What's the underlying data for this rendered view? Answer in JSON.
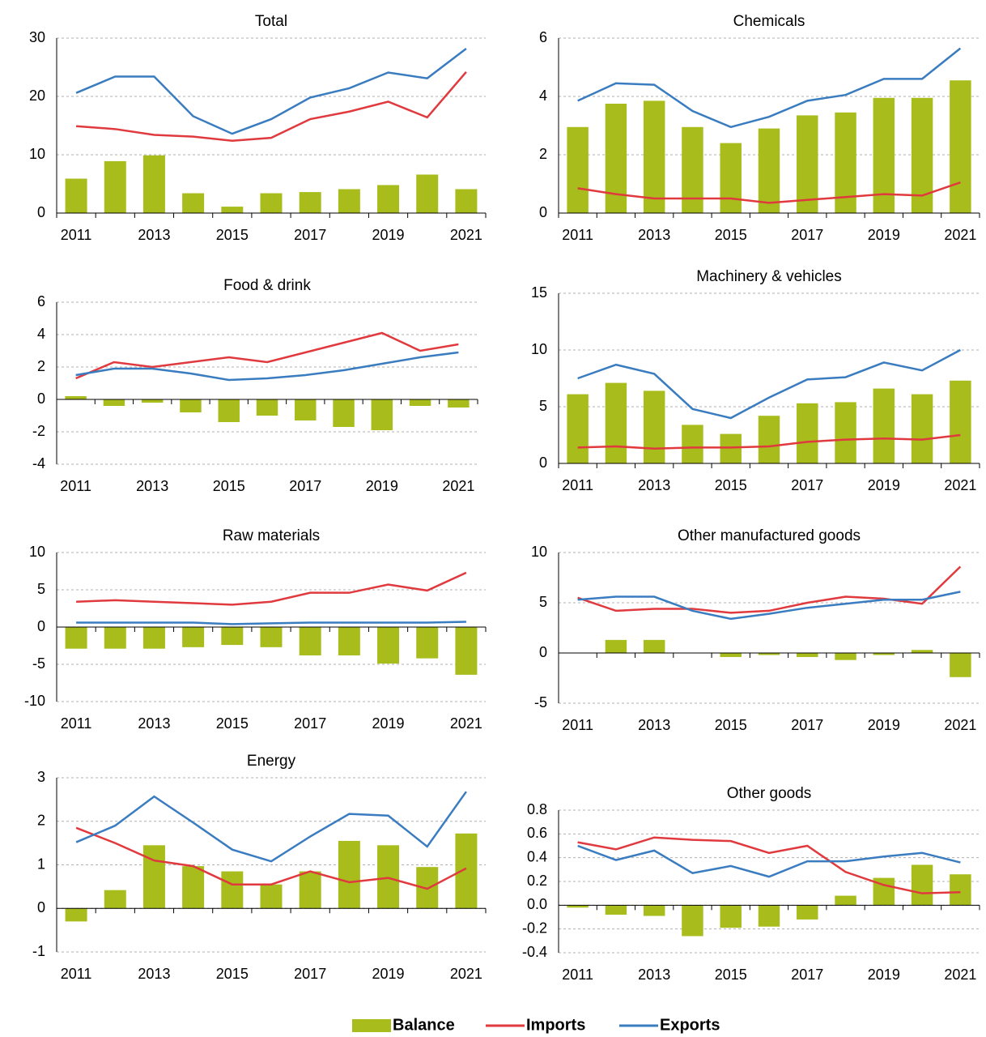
{
  "legend": [
    {
      "name": "Balance",
      "color": "#a8bd1c",
      "type": "bar"
    },
    {
      "name": "Imports",
      "color": "#e0393e",
      "type": "line"
    },
    {
      "name": "Exports",
      "color": "#3a7cc0",
      "type": "line"
    }
  ],
  "chart_data": [
    {
      "type": "bar-line",
      "title": "Total",
      "grid": true,
      "categories": [
        "2011",
        null,
        "2013",
        null,
        "2015",
        null,
        "2017",
        null,
        "2019",
        null,
        "2021"
      ],
      "ylim": [
        0,
        30
      ],
      "yticks": [
        0,
        10,
        20,
        30
      ],
      "series": [
        {
          "values": [
            5.9,
            8.9,
            9.9,
            3.4,
            1.1,
            3.4,
            3.6,
            4.1,
            4.8,
            6.6,
            4.1
          ]
        },
        {
          "values": [
            14.9,
            14.4,
            13.4,
            13.1,
            12.4,
            12.9,
            16.1,
            17.4,
            19.1,
            16.4,
            24.2
          ]
        },
        {
          "values": [
            20.6,
            23.4,
            23.4,
            16.6,
            13.6,
            16.1,
            19.8,
            21.4,
            24.1,
            23.1,
            28.2
          ]
        }
      ]
    },
    {
      "type": "bar-line",
      "title": "Chemicals",
      "grid": true,
      "categories": [
        "2011",
        null,
        "2013",
        null,
        "2015",
        null,
        "2017",
        null,
        "2019",
        null,
        "2021"
      ],
      "ylim": [
        0,
        6
      ],
      "yticks": [
        0,
        2,
        4,
        6
      ],
      "series": [
        {
          "values": [
            2.95,
            3.75,
            3.85,
            2.95,
            2.4,
            2.9,
            3.35,
            3.45,
            3.95,
            3.95,
            4.55
          ]
        },
        {
          "values": [
            0.85,
            0.65,
            0.5,
            0.5,
            0.5,
            0.35,
            0.45,
            0.55,
            0.65,
            0.6,
            1.05
          ]
        },
        {
          "values": [
            3.85,
            4.45,
            4.4,
            3.5,
            2.95,
            3.3,
            3.85,
            4.05,
            4.6,
            4.6,
            5.65
          ]
        }
      ]
    },
    {
      "type": "bar-line",
      "title": "Food & drink",
      "grid": true,
      "categories": [
        "2011",
        null,
        "2013",
        null,
        "2015",
        null,
        "2017",
        null,
        "2019",
        null,
        "2021"
      ],
      "ylim": [
        -4,
        6
      ],
      "yticks": [
        -4,
        -2,
        0,
        2,
        4,
        6
      ],
      "series": [
        {
          "values": [
            0.2,
            -0.4,
            -0.2,
            -0.8,
            -1.4,
            -1.0,
            -1.3,
            -1.7,
            -1.9,
            -0.4,
            -0.5
          ]
        },
        {
          "values": [
            1.3,
            2.3,
            2.0,
            2.3,
            2.6,
            2.3,
            2.9,
            3.5,
            4.1,
            3.0,
            3.4
          ]
        },
        {
          "values": [
            1.5,
            1.9,
            1.9,
            1.6,
            1.2,
            1.3,
            1.5,
            1.8,
            2.2,
            2.6,
            2.9
          ]
        }
      ]
    },
    {
      "type": "bar-line",
      "title": "Machinery & vehicles",
      "grid": true,
      "categories": [
        "2011",
        null,
        "2013",
        null,
        "2015",
        null,
        "2017",
        null,
        "2019",
        null,
        "2021"
      ],
      "ylim": [
        0,
        15
      ],
      "yticks": [
        0,
        5,
        10,
        15
      ],
      "series": [
        {
          "values": [
            6.1,
            7.1,
            6.4,
            3.4,
            2.6,
            4.2,
            5.3,
            5.4,
            6.6,
            6.1,
            7.3
          ]
        },
        {
          "values": [
            1.4,
            1.5,
            1.3,
            1.4,
            1.4,
            1.5,
            1.9,
            2.1,
            2.2,
            2.1,
            2.5
          ]
        },
        {
          "values": [
            7.5,
            8.7,
            7.9,
            4.8,
            4.0,
            5.8,
            7.4,
            7.6,
            8.9,
            8.2,
            10.0
          ]
        }
      ]
    },
    {
      "type": "bar-line",
      "title": "Raw materials",
      "grid": true,
      "categories": [
        "2011",
        null,
        "2013",
        null,
        "2015",
        null,
        "2017",
        null,
        "2019",
        null,
        "2021"
      ],
      "ylim": [
        -10,
        10
      ],
      "yticks": [
        -10,
        -5,
        0,
        5,
        10
      ],
      "series": [
        {
          "values": [
            -2.9,
            -2.9,
            -2.9,
            -2.7,
            -2.4,
            -2.7,
            -3.8,
            -3.8,
            -4.9,
            -4.2,
            -6.4
          ]
        },
        {
          "values": [
            3.4,
            3.6,
            3.4,
            3.2,
            3.0,
            3.4,
            4.6,
            4.6,
            5.7,
            4.9,
            7.3
          ]
        },
        {
          "values": [
            0.6,
            0.6,
            0.6,
            0.6,
            0.4,
            0.5,
            0.6,
            0.6,
            0.6,
            0.6,
            0.7
          ]
        }
      ]
    },
    {
      "type": "bar-line",
      "title": "Other manufactured  goods",
      "grid": true,
      "categories": [
        "2011",
        null,
        "2013",
        null,
        "2015",
        null,
        "2017",
        null,
        "2019",
        null,
        "2021"
      ],
      "ylim": [
        -5,
        10
      ],
      "yticks": [
        -5,
        0,
        5,
        10
      ],
      "series": [
        {
          "values": [
            0,
            1.3,
            1.3,
            0,
            -0.4,
            -0.2,
            -0.4,
            -0.7,
            -0.2,
            0.3,
            -2.4
          ]
        },
        {
          "values": [
            5.5,
            4.2,
            4.4,
            4.4,
            4.0,
            4.2,
            5.0,
            5.6,
            5.4,
            4.9,
            8.6
          ]
        },
        {
          "values": [
            5.3,
            5.6,
            5.6,
            4.2,
            3.4,
            3.9,
            4.5,
            4.9,
            5.3,
            5.3,
            6.1
          ]
        }
      ]
    },
    {
      "type": "bar-line",
      "title": "Energy",
      "grid": true,
      "categories": [
        "2011",
        null,
        "2013",
        null,
        "2015",
        null,
        "2017",
        null,
        "2019",
        null,
        "2021"
      ],
      "ylim": [
        -1,
        3
      ],
      "yticks": [
        -1,
        0,
        1,
        2,
        3
      ],
      "series": [
        {
          "values": [
            -0.3,
            0.42,
            1.45,
            0.97,
            0.85,
            0.55,
            0.85,
            1.55,
            1.45,
            0.95,
            1.72
          ]
        },
        {
          "values": [
            1.85,
            1.5,
            1.1,
            0.97,
            0.55,
            0.55,
            0.85,
            0.6,
            0.7,
            0.45,
            0.92
          ]
        },
        {
          "values": [
            1.52,
            1.9,
            2.57,
            1.97,
            1.35,
            1.08,
            1.65,
            2.17,
            2.13,
            1.42,
            2.68
          ]
        }
      ]
    },
    {
      "type": "bar-line",
      "title": "Other goods",
      "grid": true,
      "categories": [
        "2011",
        null,
        "2013",
        null,
        "2015",
        null,
        "2017",
        null,
        "2019",
        null,
        "2021"
      ],
      "ylim": [
        -0.4,
        0.8
      ],
      "yticks": [
        -0.4,
        -0.2,
        {
          "value": 0,
          "label": "0.0"
        },
        0.2,
        0.4,
        0.6,
        0.8
      ],
      "series": [
        {
          "values": [
            -0.02,
            -0.08,
            -0.09,
            -0.26,
            -0.19,
            -0.18,
            -0.12,
            0.08,
            0.23,
            0.34,
            0.26
          ]
        },
        {
          "values": [
            0.53,
            0.47,
            0.57,
            0.55,
            0.54,
            0.44,
            0.5,
            0.28,
            0.17,
            0.1,
            0.11
          ]
        },
        {
          "values": [
            0.5,
            0.38,
            0.46,
            0.27,
            0.33,
            0.24,
            0.37,
            0.37,
            0.41,
            0.44,
            0.36
          ]
        }
      ]
    }
  ]
}
